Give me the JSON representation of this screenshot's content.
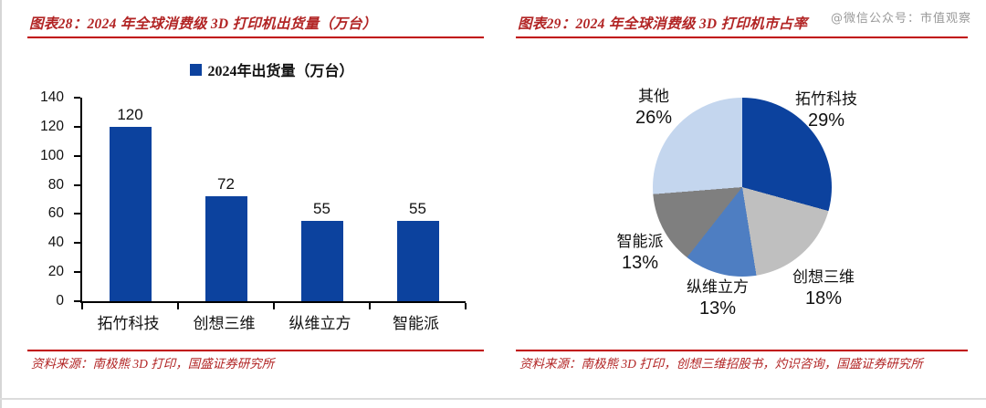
{
  "watermark": "@微信公众号：市值观察",
  "left_panel": {
    "title": "图表28：2024 年全球消费级 3D 打印机出货量（万台）",
    "source": "资料来源：南极熊 3D 打印，国盛证券研究所"
  },
  "right_panel": {
    "title": "图表29：2024 年全球消费级 3D 打印机市占率",
    "source": "资料来源：南极熊 3D 打印，创想三维招股书，灼识咨询，国盛证券研究所"
  },
  "colors": {
    "title_red": "#B22525",
    "rule_red": "#C00000",
    "bar_blue": "#0C429E",
    "axis_black": "#000000"
  },
  "chart_data": [
    {
      "type": "bar",
      "title": "2024 年全球消费级 3D 打印机出货量（万台）",
      "legend": "2024年出货量（万台）",
      "legend_position": "top",
      "categories": [
        "拓竹科技",
        "创想三维",
        "纵维立方",
        "智能派"
      ],
      "values": [
        120,
        72,
        55,
        55
      ],
      "xlabel": "",
      "ylabel": "",
      "ylim": [
        0,
        140
      ],
      "y_ticks": [
        0,
        20,
        40,
        60,
        80,
        100,
        120,
        140
      ],
      "grid": false,
      "bar_color": "#0C429E"
    },
    {
      "type": "pie",
      "title": "2024 年全球消费级 3D 打印机市占率",
      "labels": [
        "拓竹科技",
        "创想三维",
        "纵维立方",
        "智能派",
        "其他"
      ],
      "values": [
        29,
        18,
        13,
        13,
        26
      ],
      "unit": "%",
      "colors": [
        "#0C429E",
        "#BFBFBF",
        "#4E7EC2",
        "#7F7F7F",
        "#C4D6EE"
      ],
      "start_angle_deg": 0,
      "direction": "clockwise",
      "legend_position": "none"
    }
  ]
}
